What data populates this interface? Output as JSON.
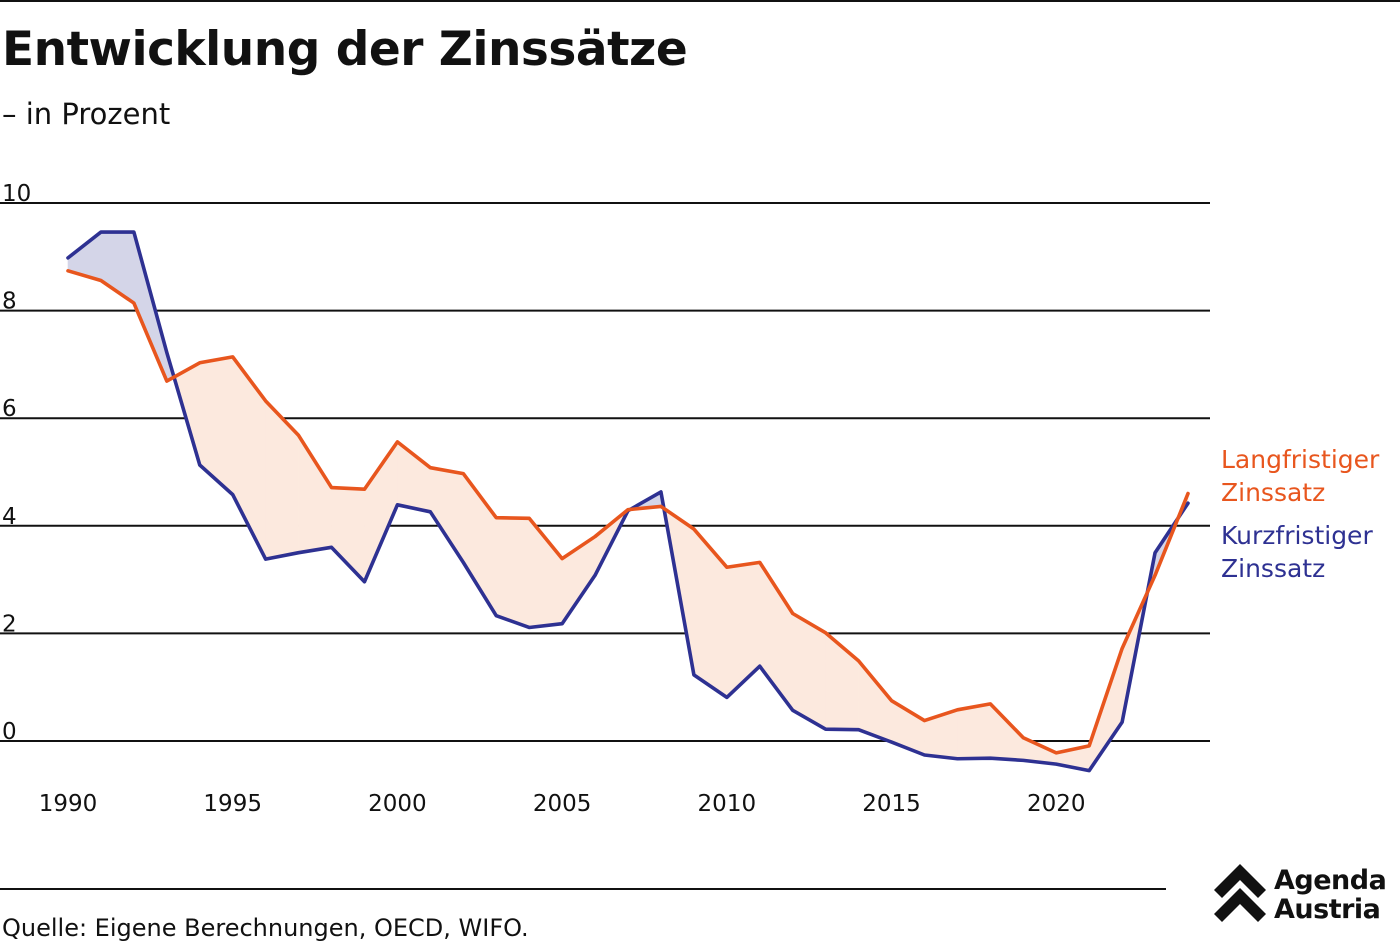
{
  "header": {
    "title": "Entwicklung der Zinssätze",
    "subtitle": "– in Prozent"
  },
  "footer": {
    "source": "Quelle: Eigene Berechnungen, OECD, WIFO."
  },
  "logo": {
    "line1": "Agenda",
    "line2": "Austria",
    "icon": "double-chevron-up-icon"
  },
  "colors": {
    "long_term": "#E8561E",
    "short_term": "#2E3192",
    "fill_long_above": "#FCE9DE",
    "fill_short_above": "#D4D5E8",
    "grid": "#111111"
  },
  "chart_data": {
    "type": "line",
    "title": "Entwicklung der Zinssätze",
    "subtitle": "– in Prozent",
    "xlabel": "",
    "ylabel": "",
    "xlim": [
      1990,
      2024
    ],
    "ylim": [
      -1,
      10
    ],
    "x_ticks": [
      1990,
      1995,
      2000,
      2005,
      2010,
      2015,
      2020
    ],
    "y_ticks": [
      0,
      2,
      4,
      6,
      8,
      10
    ],
    "grid": "horizontal",
    "legend": "right, at line ends",
    "x": [
      1990,
      1991,
      1992,
      1993,
      1994,
      1995,
      1996,
      1997,
      1998,
      1999,
      2000,
      2001,
      2002,
      2003,
      2004,
      2005,
      2006,
      2007,
      2008,
      2009,
      2010,
      2011,
      2012,
      2013,
      2014,
      2015,
      2016,
      2017,
      2018,
      2019,
      2020,
      2021,
      2022,
      2023,
      2024
    ],
    "series": [
      {
        "name": "Langfristiger Zinssatz",
        "label_lines": [
          "Langfristiger",
          "Zinssatz"
        ],
        "color": "#E8561E",
        "values": [
          8.74,
          8.56,
          8.14,
          6.69,
          7.03,
          7.14,
          6.32,
          5.68,
          4.71,
          4.68,
          5.56,
          5.08,
          4.97,
          4.15,
          4.14,
          3.39,
          3.8,
          4.3,
          4.36,
          3.94,
          3.23,
          3.32,
          2.37,
          2.01,
          1.49,
          0.75,
          0.38,
          0.58,
          0.69,
          0.06,
          -0.22,
          -0.09,
          1.72,
          3.08,
          4.6
        ]
      },
      {
        "name": "Kurzfristiger Zinssatz",
        "label_lines": [
          "Kurzfristiger",
          "Zinssatz"
        ],
        "color": "#2E3192",
        "values": [
          8.98,
          9.46,
          9.46,
          7.22,
          5.13,
          4.58,
          3.38,
          3.5,
          3.6,
          2.96,
          4.39,
          4.26,
          3.32,
          2.33,
          2.11,
          2.18,
          3.08,
          4.28,
          4.63,
          1.23,
          0.81,
          1.39,
          0.57,
          0.22,
          0.21,
          -0.02,
          -0.26,
          -0.33,
          -0.32,
          -0.36,
          -0.43,
          -0.55,
          0.35,
          3.5,
          4.42
        ]
      }
    ]
  }
}
